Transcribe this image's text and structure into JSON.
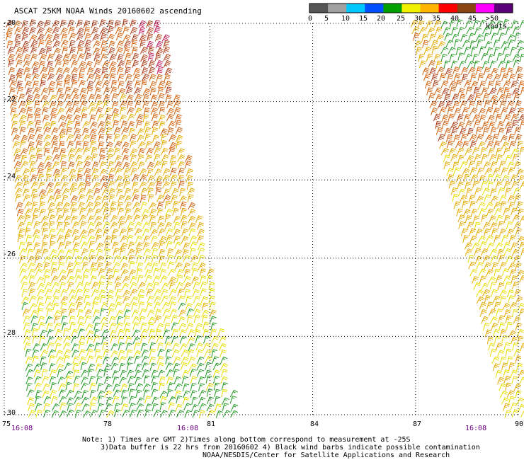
{
  "title": "ASCAT 25KM NOAA Winds 20160602 ascending",
  "colorbar": {
    "labels": [
      "0",
      "5",
      "10",
      "15",
      "20",
      "25",
      "30",
      "35",
      "40",
      "45",
      ">50 knots"
    ],
    "colors": [
      "#555555",
      "#a0a0a0",
      "#00c8ff",
      "#0050ff",
      "#00a000",
      "#f0f000",
      "#ffb400",
      "#ff0000",
      "#8b4513",
      "#ff00ff",
      "#5a0078"
    ]
  },
  "map": {
    "lat_labels": [
      "-20",
      "-22",
      "-24",
      "-26",
      "-28",
      "-30"
    ],
    "lon_labels": [
      "75",
      "78",
      "81",
      "84",
      "87",
      "90"
    ],
    "lat_range": [
      -30,
      -20
    ],
    "lon_range": [
      75,
      90
    ],
    "time_labels": [
      "16:08",
      "16:08",
      "16:08"
    ]
  },
  "notes": {
    "line1": "Note: 1) Times are GMT 2)Times along bottom correspond to measurement at -25S",
    "line2": "3)Data buffer is 22 hrs from 20160602 4) Black wind barbs indicate possible contamination",
    "line3": "NOAA/NESDIS/Center for Satellite Applications and Research"
  }
}
